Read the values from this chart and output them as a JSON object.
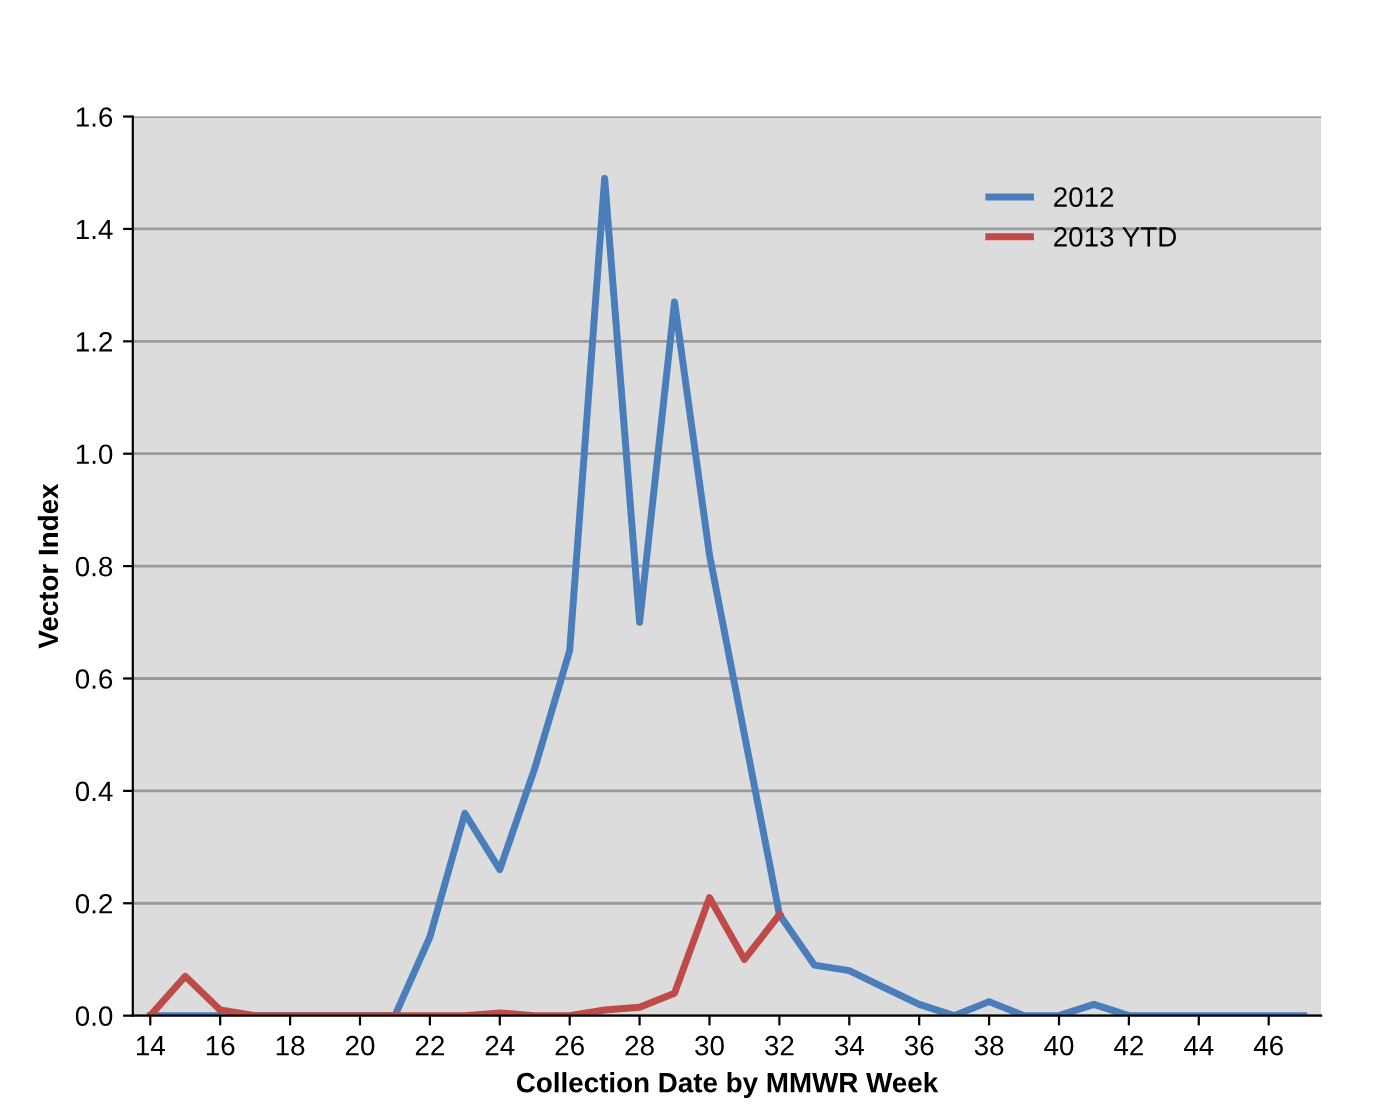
{
  "chart_data": {
    "type": "line",
    "xlabel": "Collection Date by MMWR Week",
    "ylabel": "Vector Index",
    "x": [
      14,
      15,
      16,
      17,
      18,
      19,
      20,
      21,
      22,
      23,
      24,
      25,
      26,
      27,
      28,
      29,
      30,
      31,
      32,
      33,
      34,
      35,
      36,
      37,
      38,
      39,
      40,
      41,
      42,
      43,
      44,
      45,
      46,
      47
    ],
    "series": [
      {
        "name": "2012",
        "color": "#4a7ebb",
        "values": [
          0,
          0,
          0,
          0,
          0,
          0,
          0,
          0,
          0.14,
          0.36,
          0.26,
          0.44,
          0.65,
          1.49,
          0.7,
          1.27,
          0.82,
          0.5,
          0.18,
          0.09,
          0.08,
          0.05,
          0.02,
          0,
          0.025,
          0,
          0,
          0.02,
          0,
          0,
          0,
          0,
          0,
          0
        ]
      },
      {
        "name": "2013 YTD",
        "color": "#be4b48",
        "x": [
          14,
          15,
          16,
          17,
          18,
          19,
          20,
          21,
          22,
          23,
          24,
          25,
          26,
          27,
          28,
          29,
          30,
          31,
          32
        ],
        "values": [
          0,
          0.07,
          0.01,
          0,
          0,
          0,
          0,
          0,
          0,
          0,
          0.005,
          0,
          0,
          0.01,
          0.015,
          0.04,
          0.21,
          0.1,
          0.18
        ]
      }
    ],
    "xlim": [
      13.5,
      47.5
    ],
    "xticks": [
      14,
      16,
      18,
      20,
      22,
      24,
      26,
      28,
      30,
      32,
      34,
      36,
      38,
      40,
      42,
      44,
      46
    ],
    "ylim": [
      0,
      1.6
    ],
    "yticks": [
      {
        "value": 0,
        "label": "0.0"
      },
      {
        "value": 0.2,
        "label": "0.2"
      },
      {
        "value": 0.4,
        "label": "0.4"
      },
      {
        "value": 0.6,
        "label": "0.6"
      },
      {
        "value": 0.8,
        "label": "0.8"
      },
      {
        "value": 1.0,
        "label": "1.0"
      },
      {
        "value": 1.2,
        "label": "1.2"
      },
      {
        "value": 1.4,
        "label": "1.4"
      },
      {
        "value": 1.6,
        "label": "1.6"
      }
    ],
    "grid": "y",
    "legend": "top right",
    "marker": "none",
    "line_style": "solid"
  }
}
